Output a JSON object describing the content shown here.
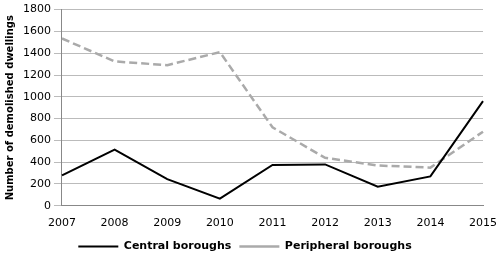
{
  "chart_data": {
    "type": "line",
    "y_label": "Number of demolished dwellings",
    "categories": [
      "2007",
      "2008",
      "2009",
      "2010",
      "2011",
      "2012",
      "2013",
      "2014",
      "2015"
    ],
    "series": [
      {
        "name": "Central boroughs",
        "color": "#000000",
        "line_style": "solid",
        "values": [
          280,
          515,
          245,
          65,
          375,
          380,
          175,
          270,
          960
        ]
      },
      {
        "name": "Peripheral boroughs",
        "color": "#aaaaaa",
        "line_style": "dashed",
        "values": [
          1535,
          1325,
          1290,
          1410,
          720,
          440,
          370,
          350,
          680
        ]
      }
    ],
    "ylim": [
      0,
      1800
    ],
    "yticks": [
      0,
      200,
      400,
      600,
      800,
      1000,
      1200,
      1400,
      1600,
      1800
    ],
    "grid": true,
    "legend": "bottom"
  }
}
